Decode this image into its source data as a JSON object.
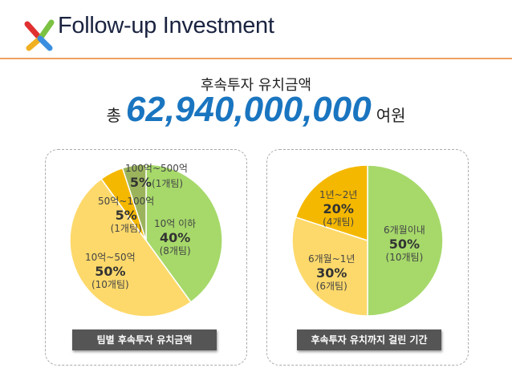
{
  "header": {
    "title": "Follow-up Investment"
  },
  "summary": {
    "subtitle": "후속투자 유치금액",
    "prefix": "총",
    "amount": "62,940,000,000",
    "suffix": "여원"
  },
  "chart_data": [
    {
      "type": "pie",
      "title": "팀별 후속투자 유치금액",
      "slices": [
        {
          "label": "10억 이하",
          "percent": 40,
          "count": "(8개팀)",
          "color": "#a6d96a"
        },
        {
          "label": "10억~50억",
          "percent": 50,
          "count": "(10개팀)",
          "color": "#fdd96b"
        },
        {
          "label": "50억~100억",
          "percent": 5,
          "count": "(1개팀)",
          "color": "#f5b800"
        },
        {
          "label": "100억~500억",
          "percent": 5,
          "count": "(1개팀)",
          "color": "#9bb45c"
        }
      ]
    },
    {
      "type": "pie",
      "title": "후속투자 유치까지 걸린 기간",
      "slices": [
        {
          "label": "6개월이내",
          "percent": 50,
          "count": "(10개팀)",
          "color": "#a6d96a"
        },
        {
          "label": "6개월~1년",
          "percent": 30,
          "count": "(6개팀)",
          "color": "#fdd96b"
        },
        {
          "label": "1년~2년",
          "percent": 20,
          "count": "(4개팀)",
          "color": "#f5b800"
        }
      ]
    }
  ]
}
